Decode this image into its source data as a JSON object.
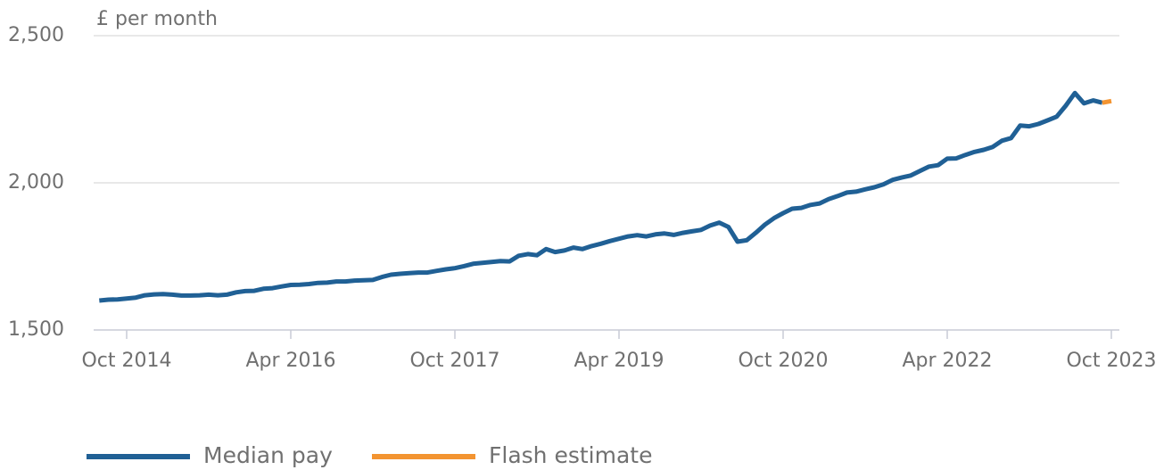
{
  "chart_data": {
    "type": "line",
    "ylabel": "£ per month",
    "x": [
      "Jul 2014",
      "Aug 2014",
      "Sep 2014",
      "Oct 2014",
      "Nov 2014",
      "Dec 2014",
      "Jan 2015",
      "Feb 2015",
      "Mar 2015",
      "Apr 2015",
      "May 2015",
      "Jun 2015",
      "Jul 2015",
      "Aug 2015",
      "Sep 2015",
      "Oct 2015",
      "Nov 2015",
      "Dec 2015",
      "Jan 2016",
      "Feb 2016",
      "Mar 2016",
      "Apr 2016",
      "May 2016",
      "Jun 2016",
      "Jul 2016",
      "Aug 2016",
      "Sep 2016",
      "Oct 2016",
      "Nov 2016",
      "Dec 2016",
      "Jan 2017",
      "Feb 2017",
      "Mar 2017",
      "Apr 2017",
      "May 2017",
      "Jun 2017",
      "Jul 2017",
      "Aug 2017",
      "Sep 2017",
      "Oct 2017",
      "Nov 2017",
      "Dec 2017",
      "Jan 2018",
      "Feb 2018",
      "Mar 2018",
      "Apr 2018",
      "May 2018",
      "Jun 2018",
      "Jul 2018",
      "Aug 2018",
      "Sep 2018",
      "Oct 2018",
      "Nov 2018",
      "Dec 2018",
      "Jan 2019",
      "Feb 2019",
      "Mar 2019",
      "Apr 2019",
      "May 2019",
      "Jun 2019",
      "Jul 2019",
      "Aug 2019",
      "Sep 2019",
      "Oct 2019",
      "Nov 2019",
      "Dec 2019",
      "Jan 2020",
      "Feb 2020",
      "Mar 2020",
      "Apr 2020",
      "May 2020",
      "Jun 2020",
      "Jul 2020",
      "Aug 2020",
      "Sep 2020",
      "Oct 2020",
      "Nov 2020",
      "Dec 2020",
      "Jan 2021",
      "Feb 2021",
      "Mar 2021",
      "Apr 2021",
      "May 2021",
      "Jun 2021",
      "Jul 2021",
      "Aug 2021",
      "Sep 2021",
      "Oct 2021",
      "Nov 2021",
      "Dec 2021",
      "Jan 2022",
      "Feb 2022",
      "Mar 2022",
      "Apr 2022",
      "May 2022",
      "Jun 2022",
      "Jul 2022",
      "Aug 2022",
      "Sep 2022",
      "Oct 2022",
      "Nov 2022",
      "Dec 2022",
      "Jan 2023",
      "Feb 2023",
      "Mar 2023",
      "Apr 2023",
      "May 2023",
      "Jun 2023",
      "Jul 2023",
      "Aug 2023",
      "Sep 2023",
      "Oct 2023"
    ],
    "xticks": [
      "Oct 2014",
      "Apr 2016",
      "Oct 2017",
      "Apr 2019",
      "Oct 2020",
      "Apr 2022",
      "Oct 2023"
    ],
    "ylim": [
      1500,
      2500
    ],
    "yticks": [
      {
        "value": 1500,
        "label": "1,500"
      },
      {
        "value": 2000,
        "label": "2,000"
      },
      {
        "value": 2500,
        "label": "2,500"
      }
    ],
    "grid": true,
    "legend": "bottom",
    "series": [
      {
        "name": "Median pay",
        "color": "#206095",
        "values": [
          1600,
          1603,
          1604,
          1607,
          1610,
          1618,
          1621,
          1622,
          1620,
          1617,
          1617,
          1618,
          1620,
          1618,
          1620,
          1628,
          1632,
          1633,
          1640,
          1642,
          1648,
          1653,
          1654,
          1656,
          1660,
          1661,
          1665,
          1665,
          1668,
          1669,
          1670,
          1680,
          1688,
          1691,
          1693,
          1695,
          1695,
          1701,
          1706,
          1710,
          1717,
          1725,
          1728,
          1731,
          1734,
          1733,
          1752,
          1758,
          1754,
          1775,
          1765,
          1770,
          1780,
          1775,
          1785,
          1793,
          1802,
          1810,
          1818,
          1822,
          1818,
          1825,
          1828,
          1823,
          1830,
          1835,
          1840,
          1855,
          1865,
          1850,
          1800,
          1805,
          1830,
          1858,
          1880,
          1897,
          1912,
          1915,
          1925,
          1930,
          1945,
          1955,
          1967,
          1970,
          1978,
          1985,
          1995,
          2010,
          2018,
          2025,
          2040,
          2055,
          2060,
          2082,
          2083,
          2095,
          2105,
          2112,
          2122,
          2143,
          2152,
          2195,
          2192,
          2200,
          2212,
          2225,
          2262,
          2305,
          2270,
          2280,
          2272,
          null
        ]
      },
      {
        "name": "Flash estimate",
        "color": "#f39431",
        "values": [
          null,
          null,
          null,
          null,
          null,
          null,
          null,
          null,
          null,
          null,
          null,
          null,
          null,
          null,
          null,
          null,
          null,
          null,
          null,
          null,
          null,
          null,
          null,
          null,
          null,
          null,
          null,
          null,
          null,
          null,
          null,
          null,
          null,
          null,
          null,
          null,
          null,
          null,
          null,
          null,
          null,
          null,
          null,
          null,
          null,
          null,
          null,
          null,
          null,
          null,
          null,
          null,
          null,
          null,
          null,
          null,
          null,
          null,
          null,
          null,
          null,
          null,
          null,
          null,
          null,
          null,
          null,
          null,
          null,
          null,
          null,
          null,
          null,
          null,
          null,
          null,
          null,
          null,
          null,
          null,
          null,
          null,
          null,
          null,
          null,
          null,
          null,
          null,
          null,
          null,
          null,
          null,
          null,
          null,
          null,
          null,
          null,
          null,
          null,
          null,
          null,
          null,
          null,
          null,
          null,
          null,
          null,
          null,
          null,
          null,
          2272,
          2278
        ]
      }
    ]
  }
}
